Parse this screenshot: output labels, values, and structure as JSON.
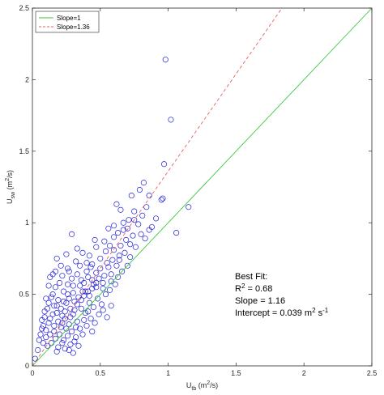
{
  "chart_data": {
    "type": "scatter",
    "xlim": [
      0,
      2.5
    ],
    "ylim": [
      0,
      2.5
    ],
    "xticks": [
      "0",
      "0.5",
      "1",
      "1.5",
      "2",
      "2.5"
    ],
    "yticks": [
      "0",
      "0.5",
      "1",
      "1.5",
      "2",
      "2.5"
    ],
    "xlabel": {
      "base": "U",
      "sub": "tb",
      "units": " (m",
      "sup": "2",
      "units_end": "/s)"
    },
    "ylabel": {
      "base": "U",
      "sub": "sw",
      "units": " (m",
      "sup": "2",
      "units_end": "/s)"
    },
    "grid": false,
    "legend_position": "top-left",
    "lines": [
      {
        "name": "Slope=1",
        "slope": 1,
        "intercept": 0,
        "color": "#39c839",
        "dash": "solid"
      },
      {
        "name": "Slope=1.36",
        "slope": 1.36,
        "intercept": 0,
        "color": "#e36262",
        "dash": "dashed"
      }
    ],
    "marker": {
      "shape": "circle",
      "color": "#1f1fd6"
    },
    "annotation": {
      "title": "Best Fit:",
      "r2_prefix": "R",
      "r2_sup": "2",
      "r2_value": " = 0.68",
      "slope": "Slope = 1.16",
      "intercept_prefix": "Intercept = 0.039 m",
      "intercept_sup1": "2",
      "intercept_mid": " s",
      "intercept_sup2": "-1"
    },
    "points": [
      [
        0.98,
        2.14
      ],
      [
        1.02,
        1.72
      ],
      [
        0.97,
        1.41
      ],
      [
        0.82,
        1.28
      ],
      [
        0.79,
        1.23
      ],
      [
        0.86,
        1.19
      ],
      [
        0.96,
        1.17
      ],
      [
        1.15,
        1.11
      ],
      [
        1.06,
        0.93
      ],
      [
        0.73,
        1.19
      ],
      [
        0.62,
        1.13
      ],
      [
        0.95,
        1.16
      ],
      [
        0.65,
        1.09
      ],
      [
        0.75,
        1.08
      ],
      [
        0.6,
        0.98
      ],
      [
        0.71,
        1.02
      ],
      [
        0.67,
        0.95
      ],
      [
        0.56,
        0.96
      ],
      [
        0.53,
        0.87
      ],
      [
        0.57,
        0.84
      ],
      [
        0.47,
        0.83
      ],
      [
        0.29,
        0.92
      ],
      [
        0.4,
        0.72
      ],
      [
        0.18,
        0.75
      ],
      [
        0.13,
        0.62
      ],
      [
        0.07,
        0.26
      ],
      [
        0.05,
        0.18
      ],
      [
        0.04,
        0.11
      ],
      [
        0.02,
        0.05
      ],
      [
        0.09,
        0.34
      ],
      [
        0.11,
        0.4
      ],
      [
        0.14,
        0.48
      ],
      [
        0.17,
        0.55
      ],
      [
        0.22,
        0.63
      ],
      [
        0.26,
        0.68
      ],
      [
        0.32,
        0.73
      ],
      [
        0.37,
        0.79
      ],
      [
        0.43,
        0.69
      ],
      [
        0.5,
        0.75
      ],
      [
        0.55,
        0.72
      ],
      [
        0.6,
        0.81
      ],
      [
        0.64,
        0.77
      ],
      [
        0.69,
        0.88
      ],
      [
        0.74,
        0.91
      ],
      [
        0.78,
        0.99
      ],
      [
        0.81,
        1.05
      ],
      [
        0.84,
        1.11
      ],
      [
        0.88,
        0.97
      ],
      [
        0.91,
        1.03
      ],
      [
        0.58,
        0.64
      ],
      [
        0.52,
        0.58
      ],
      [
        0.47,
        0.55
      ],
      [
        0.44,
        0.6
      ],
      [
        0.41,
        0.52
      ],
      [
        0.38,
        0.49
      ],
      [
        0.35,
        0.56
      ],
      [
        0.31,
        0.45
      ],
      [
        0.28,
        0.4
      ],
      [
        0.25,
        0.44
      ],
      [
        0.22,
        0.35
      ],
      [
        0.19,
        0.31
      ],
      [
        0.16,
        0.28
      ],
      [
        0.13,
        0.22
      ],
      [
        0.12,
        0.3
      ],
      [
        0.15,
        0.36
      ],
      [
        0.18,
        0.42
      ],
      [
        0.21,
        0.27
      ],
      [
        0.24,
        0.33
      ],
      [
        0.27,
        0.29
      ],
      [
        0.3,
        0.36
      ],
      [
        0.33,
        0.31
      ],
      [
        0.36,
        0.4
      ],
      [
        0.39,
        0.37
      ],
      [
        0.42,
        0.44
      ],
      [
        0.45,
        0.41
      ],
      [
        0.48,
        0.47
      ],
      [
        0.51,
        0.43
      ],
      [
        0.54,
        0.5
      ],
      [
        0.57,
        0.53
      ],
      [
        0.61,
        0.57
      ],
      [
        0.63,
        0.62
      ],
      [
        0.66,
        0.66
      ],
      [
        0.7,
        0.7
      ],
      [
        0.2,
        0.22
      ],
      [
        0.23,
        0.18
      ],
      [
        0.26,
        0.21
      ],
      [
        0.29,
        0.24
      ],
      [
        0.32,
        0.2
      ],
      [
        0.35,
        0.26
      ],
      [
        0.17,
        0.19
      ],
      [
        0.14,
        0.16
      ],
      [
        0.11,
        0.14
      ],
      [
        0.1,
        0.2
      ],
      [
        0.08,
        0.16
      ],
      [
        0.19,
        0.13
      ],
      [
        0.24,
        0.12
      ],
      [
        0.28,
        0.15
      ],
      [
        0.31,
        0.17
      ],
      [
        0.34,
        0.14
      ],
      [
        0.37,
        0.22
      ],
      [
        0.4,
        0.28
      ],
      [
        0.43,
        0.33
      ],
      [
        0.46,
        0.3
      ],
      [
        0.49,
        0.36
      ],
      [
        0.52,
        0.39
      ],
      [
        0.55,
        0.34
      ],
      [
        0.58,
        0.42
      ],
      [
        0.15,
        0.5
      ],
      [
        0.12,
        0.44
      ],
      [
        0.09,
        0.38
      ],
      [
        0.07,
        0.32
      ],
      [
        0.2,
        0.58
      ],
      [
        0.23,
        0.52
      ],
      [
        0.26,
        0.57
      ],
      [
        0.29,
        0.61
      ],
      [
        0.33,
        0.64
      ],
      [
        0.36,
        0.6
      ],
      [
        0.4,
        0.66
      ],
      [
        0.44,
        0.71
      ],
      [
        0.47,
        0.65
      ],
      [
        0.5,
        0.68
      ],
      [
        0.53,
        0.63
      ],
      [
        0.56,
        0.69
      ],
      [
        0.59,
        0.74
      ],
      [
        0.62,
        0.7
      ],
      [
        0.65,
        0.84
      ],
      [
        0.68,
        0.79
      ],
      [
        0.72,
        0.85
      ],
      [
        0.76,
        0.83
      ],
      [
        0.8,
        0.92
      ],
      [
        0.83,
        0.89
      ],
      [
        0.86,
        0.95
      ],
      [
        0.21,
        0.4
      ],
      [
        0.24,
        0.38
      ],
      [
        0.27,
        0.47
      ],
      [
        0.3,
        0.51
      ],
      [
        0.34,
        0.48
      ],
      [
        0.38,
        0.58
      ],
      [
        0.41,
        0.62
      ],
      [
        0.45,
        0.57
      ],
      [
        0.49,
        0.61
      ],
      [
        0.16,
        0.24
      ],
      [
        0.18,
        0.37
      ],
      [
        0.22,
        0.3
      ],
      [
        0.25,
        0.26
      ],
      [
        0.28,
        0.34
      ],
      [
        0.31,
        0.39
      ],
      [
        0.33,
        0.43
      ],
      [
        0.36,
        0.46
      ],
      [
        0.39,
        0.52
      ],
      [
        0.42,
        0.49
      ],
      [
        0.44,
        0.54
      ],
      [
        0.47,
        0.58
      ],
      [
        0.06,
        0.22
      ],
      [
        0.08,
        0.28
      ],
      [
        0.1,
        0.25
      ],
      [
        0.13,
        0.33
      ],
      [
        0.16,
        0.42
      ],
      [
        0.19,
        0.46
      ],
      [
        0.12,
        0.56
      ],
      [
        0.1,
        0.47
      ],
      [
        0.15,
        0.64
      ],
      [
        0.25,
        0.78
      ],
      [
        0.33,
        0.82
      ],
      [
        0.46,
        0.88
      ],
      [
        0.6,
        0.9
      ],
      [
        0.7,
        0.96
      ],
      [
        0.75,
        1.02
      ],
      [
        0.67,
        1.0
      ],
      [
        0.63,
        0.93
      ],
      [
        0.54,
        0.8
      ],
      [
        0.42,
        0.77
      ],
      [
        0.35,
        0.7
      ],
      [
        0.27,
        0.66
      ],
      [
        0.21,
        0.7
      ],
      [
        0.17,
        0.66
      ],
      [
        0.3,
        0.56
      ],
      [
        0.37,
        0.52
      ],
      [
        0.52,
        0.54
      ],
      [
        0.58,
        0.59
      ],
      [
        0.64,
        0.74
      ],
      [
        0.72,
        0.76
      ],
      [
        0.23,
        0.45
      ],
      [
        0.26,
        0.5
      ],
      [
        0.32,
        0.27
      ],
      [
        0.38,
        0.32
      ],
      [
        0.41,
        0.38
      ],
      [
        0.44,
        0.24
      ],
      [
        0.22,
        0.16
      ],
      [
        0.27,
        0.11
      ],
      [
        0.18,
        0.1
      ],
      [
        0.3,
        0.09
      ]
    ]
  }
}
